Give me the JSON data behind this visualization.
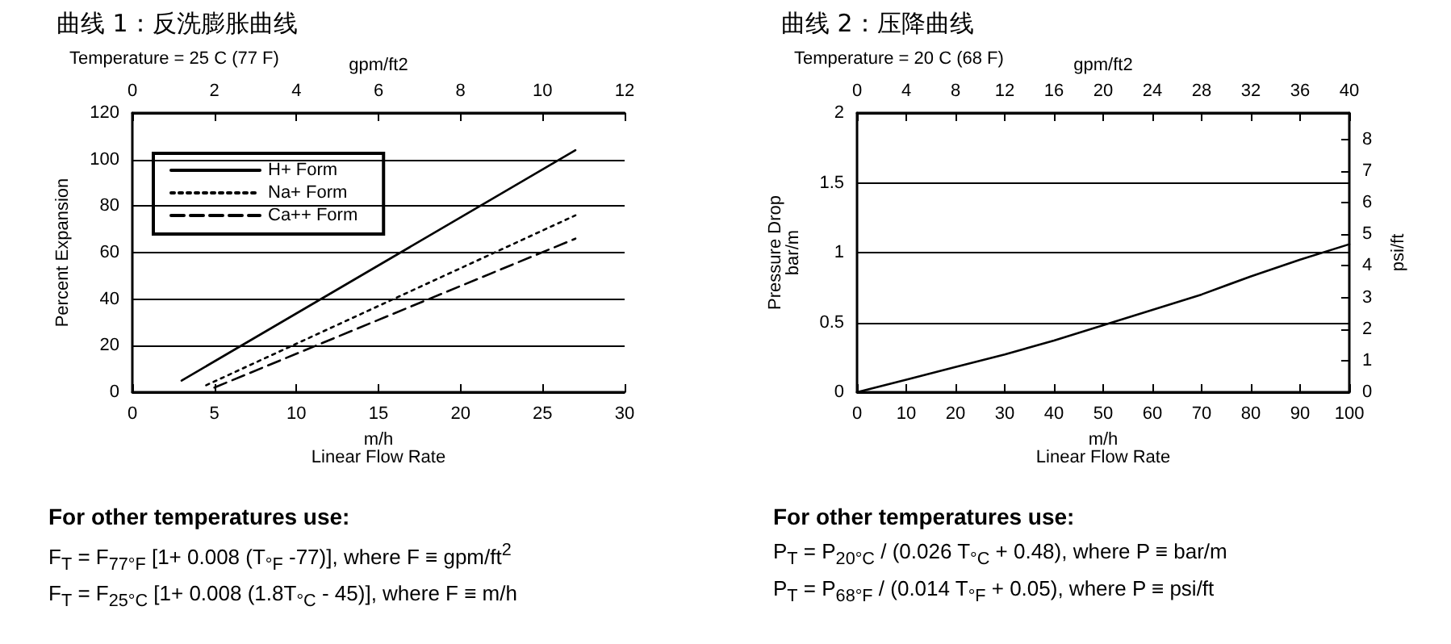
{
  "chart_data": [
    {
      "type": "line",
      "title": "曲线 1：反洗膨胀曲线",
      "subtitle": "Temperature = 25 C (77 F)",
      "xlabel": "m/h\nLinear Flow Rate",
      "x2label": "gpm/ft2",
      "ylabel": "Percent Expansion",
      "xlim": [
        0,
        30
      ],
      "xticks": [
        0,
        5,
        10,
        15,
        20,
        25,
        30
      ],
      "x2lim": [
        0,
        12
      ],
      "x2ticks": [
        0,
        2,
        4,
        6,
        8,
        10,
        12
      ],
      "ylim": [
        0,
        120
      ],
      "yticks": [
        0,
        20,
        40,
        60,
        80,
        100,
        120
      ],
      "grid": "y",
      "legend": "top left",
      "marker": "none",
      "series": [
        {
          "name": "H+ Form",
          "color": "#000000",
          "line_style": "solid",
          "x": [
            3,
            27
          ],
          "values": [
            5,
            104
          ]
        },
        {
          "name": "Na+ Form",
          "color": "#000000",
          "line_style": "dotted",
          "x": [
            4.5,
            27
          ],
          "values": [
            3,
            76
          ]
        },
        {
          "name": "Ca++ Form",
          "color": "#000000",
          "line_style": "dashed",
          "x": [
            5,
            27
          ],
          "values": [
            2,
            66
          ]
        }
      ],
      "annotations": [
        "For other temperatures use:",
        "F$_{T}$ = F$_{77°F}$ [1+ 0.008 (T$_{°F}$ -77)], where F ≡ gpm/ft$^{2}$",
        "F$_{T}$ = F$_{25°C}$ [1+ 0.008 (1.8T$_{°C}$ - 45)], where F ≡ m/h"
      ]
    },
    {
      "type": "line",
      "title": "曲线 2：压降曲线",
      "subtitle": "Temperature = 20 C (68 F)",
      "xlabel": "m/h\nLinear Flow Rate",
      "x2label": "gpm/ft2",
      "ylabel": "Pressure Drop\nbar/m",
      "y2label": "psi/ft",
      "xlim": [
        0,
        100
      ],
      "xticks": [
        0,
        10,
        20,
        30,
        40,
        50,
        60,
        70,
        80,
        90,
        100
      ],
      "x2lim": [
        0,
        40
      ],
      "x2ticks": [
        0,
        4,
        8,
        12,
        16,
        20,
        24,
        28,
        32,
        36,
        40
      ],
      "ylim": [
        0,
        2
      ],
      "yticks": [
        0,
        0.5,
        1,
        1.5,
        2
      ],
      "y2lim": [
        0,
        8.84
      ],
      "y2ticks": [
        0,
        1,
        2,
        3,
        4,
        5,
        6,
        7,
        8
      ],
      "grid": "y",
      "marker": "none",
      "series": [
        {
          "color": "#000000",
          "line_style": "solid",
          "x": [
            0,
            10,
            20,
            30,
            40,
            50,
            60,
            70,
            80,
            90,
            100
          ],
          "values": [
            0,
            0.09,
            0.18,
            0.27,
            0.37,
            0.48,
            0.59,
            0.7,
            0.83,
            0.95,
            1.06
          ]
        }
      ],
      "annotations": [
        "For other temperatures use:",
        "P$_{T}$ = P$_{20°C}$ / (0.026 T$_{°C}$ + 0.48), where P ≡ bar/m",
        "P$_{T}$ = P$_{68°F}$ / (0.014 T$_{°F}$ + 0.05), where P ≡ psi/ft"
      ]
    }
  ]
}
